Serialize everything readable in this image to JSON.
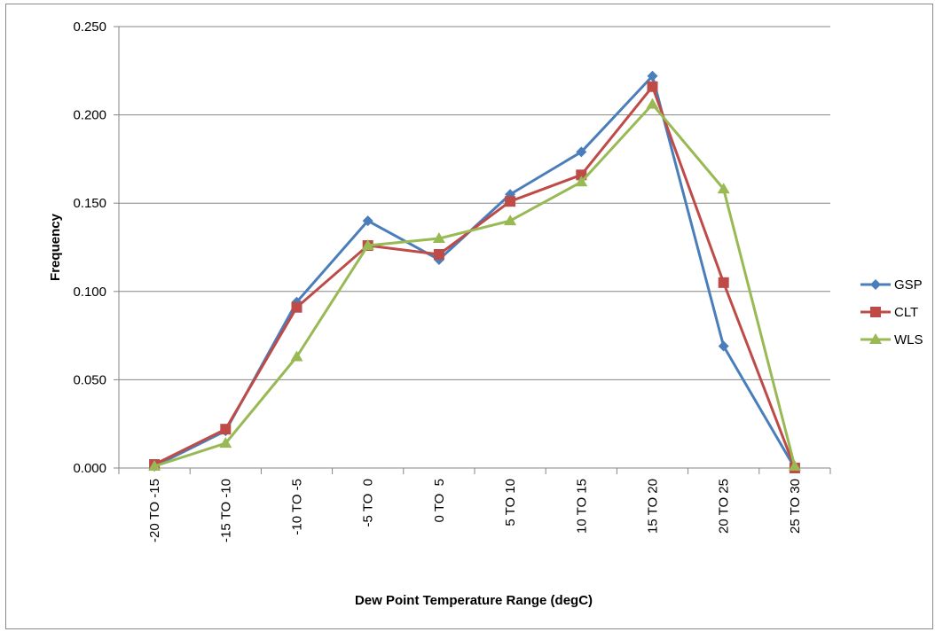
{
  "chart_data": {
    "type": "line",
    "xlabel": "Dew Point Temperature Range (degC)",
    "ylabel": "Frequency",
    "ylim": [
      0,
      0.25
    ],
    "yticks": [
      "0.000",
      "0.050",
      "0.100",
      "0.150",
      "0.200",
      "0.250"
    ],
    "categories": [
      "-20 TO -15",
      "-15 TO -10",
      "-10 TO -5",
      "-5 TO  0",
      "0 TO  5",
      "5 TO 10",
      "10 TO 15",
      "15 TO 20",
      "20 TO 25",
      "25 TO 30"
    ],
    "grid": "horizontal",
    "legend_position": "right",
    "series": [
      {
        "name": "GSP",
        "color": "#4a7ebb",
        "marker": "diamond",
        "values": [
          0.001,
          0.021,
          0.094,
          0.14,
          0.118,
          0.155,
          0.179,
          0.222,
          0.069,
          0.0
        ]
      },
      {
        "name": "CLT",
        "color": "#be4b48",
        "marker": "square",
        "values": [
          0.002,
          0.022,
          0.091,
          0.126,
          0.121,
          0.151,
          0.166,
          0.216,
          0.105,
          0.0
        ]
      },
      {
        "name": "WLS",
        "color": "#98b954",
        "marker": "triangle",
        "values": [
          0.001,
          0.014,
          0.063,
          0.126,
          0.13,
          0.14,
          0.162,
          0.206,
          0.158,
          0.001
        ]
      }
    ]
  }
}
